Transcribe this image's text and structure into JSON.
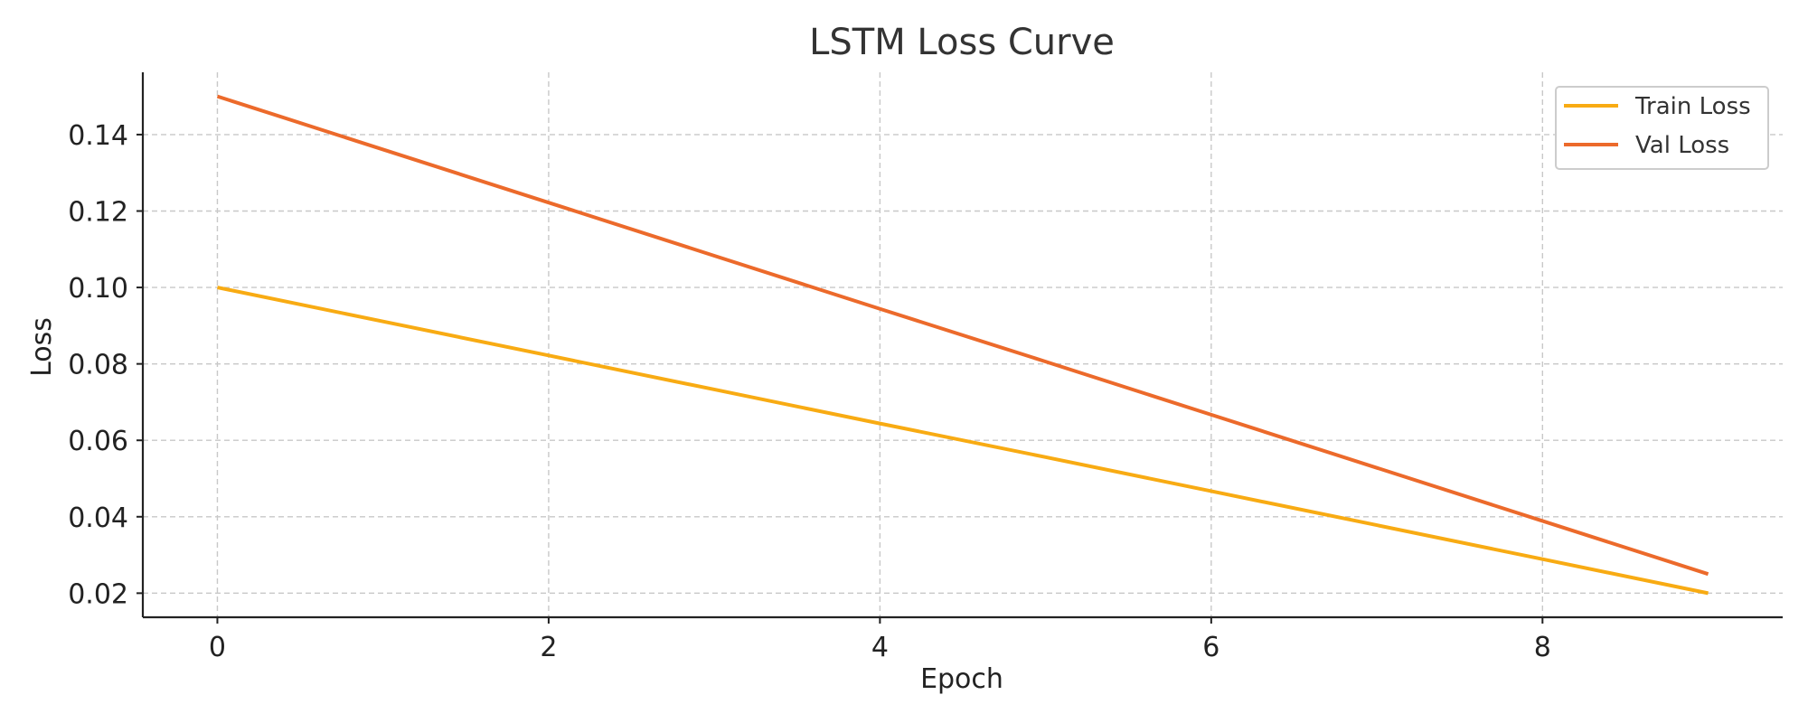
{
  "chart_data": {
    "type": "line",
    "title": "LSTM Loss Curve",
    "xlabel": "Epoch",
    "ylabel": "Loss",
    "x": [
      0,
      1,
      2,
      3,
      4,
      5,
      6,
      7,
      8,
      9
    ],
    "series": [
      {
        "name": "Train Loss",
        "color": "#f8ab13",
        "values": [
          0.1,
          0.0911,
          0.0822,
          0.0733,
          0.0644,
          0.0556,
          0.0467,
          0.0378,
          0.0289,
          0.02
        ]
      },
      {
        "name": "Val Loss",
        "color": "#ec6a2b",
        "values": [
          0.15,
          0.1361,
          0.1222,
          0.1083,
          0.0944,
          0.0806,
          0.0667,
          0.0528,
          0.0389,
          0.025
        ]
      }
    ],
    "xlim": [
      -0.45,
      9.45
    ],
    "ylim": [
      0.0137,
      0.1563
    ],
    "xticks": [
      "0",
      "2",
      "4",
      "6",
      "8"
    ],
    "yticks": [
      "0.02",
      "0.04",
      "0.06",
      "0.08",
      "0.10",
      "0.12",
      "0.14"
    ],
    "grid": true,
    "legend_position": "top-right"
  }
}
